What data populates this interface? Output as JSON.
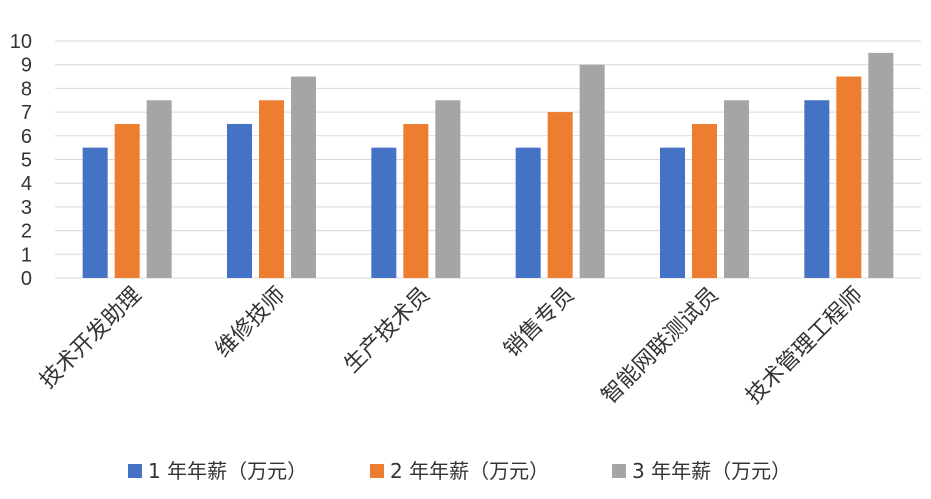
{
  "chart_data": {
    "type": "bar",
    "categories": [
      "技术开发助理",
      "维修技师",
      "生产技术员",
      "销售专员",
      "智能网联测试员",
      "技术管理工程师"
    ],
    "series": [
      {
        "name": "1 年年薪（万元）",
        "color": "#4472C4",
        "values": [
          5.5,
          6.5,
          5.5,
          5.5,
          5.5,
          7.5
        ]
      },
      {
        "name": "2 年年薪（万元）",
        "color": "#ED7D31",
        "values": [
          6.5,
          7.5,
          6.5,
          7.0,
          6.5,
          8.5
        ]
      },
      {
        "name": "3 年年薪（万元）",
        "color": "#A5A5A5",
        "values": [
          7.5,
          8.5,
          7.5,
          9.0,
          7.5,
          9.5
        ]
      }
    ],
    "ylim": [
      0,
      10
    ],
    "yticks": [
      "0",
      "1",
      "2",
      "3",
      "4",
      "5",
      "6",
      "7",
      "8",
      "9",
      "10"
    ],
    "grid": true,
    "legend": "bottom"
  }
}
